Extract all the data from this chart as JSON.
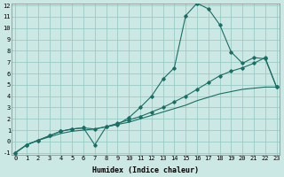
{
  "xlabel": "Humidex (Indice chaleur)",
  "bg_color": "#cce8e4",
  "grid_color": "#99ccc6",
  "line_color": "#1a6e64",
  "series1_y": [
    -1,
    -0.3,
    0.1,
    0.4,
    0.7,
    0.9,
    1.0,
    1.1,
    1.3,
    1.5,
    1.7,
    2.0,
    2.3,
    2.6,
    2.9,
    3.2,
    3.6,
    3.9,
    4.2,
    4.4,
    4.6,
    4.7,
    4.8,
    4.8
  ],
  "series2_y": [
    -1,
    -0.3,
    0.1,
    0.5,
    0.9,
    1.1,
    1.2,
    -0.3,
    1.3,
    1.5,
    2.1,
    3.0,
    4.0,
    5.5,
    6.5,
    11.1,
    12.2,
    11.7,
    10.3,
    7.9,
    6.9,
    7.4,
    7.3,
    4.8
  ],
  "series3_y": [
    -1,
    -0.3,
    0.1,
    0.5,
    0.9,
    1.1,
    1.2,
    1.1,
    1.3,
    1.6,
    1.9,
    2.2,
    2.6,
    3.0,
    3.5,
    4.0,
    4.6,
    5.2,
    5.8,
    6.2,
    6.5,
    6.9,
    7.4,
    4.8
  ],
  "ylim_min": -1,
  "ylim_max": 12,
  "xlim_min": 0,
  "xlim_max": 23,
  "yticks": [
    -1,
    0,
    1,
    2,
    3,
    4,
    5,
    6,
    7,
    8,
    9,
    10,
    11,
    12
  ],
  "xticks": [
    0,
    1,
    2,
    3,
    4,
    5,
    6,
    7,
    8,
    9,
    10,
    11,
    12,
    13,
    14,
    15,
    16,
    17,
    18,
    19,
    20,
    21,
    22,
    23
  ],
  "tick_fontsize": 5.0,
  "xlabel_fontsize": 6.0,
  "xlabel_fontweight": "bold"
}
